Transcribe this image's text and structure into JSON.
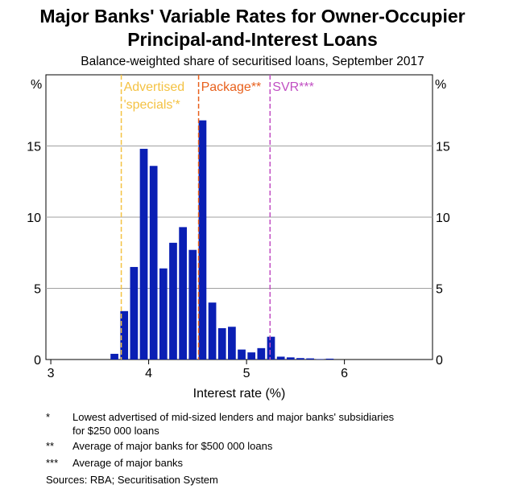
{
  "title_line1": "Major Banks' Variable Rates for Owner-Occupier",
  "title_line2": "Principal-and-Interest Loans",
  "subtitle": "Balance-weighted share of securitised loans, September 2017",
  "chart_data": {
    "type": "bar",
    "title": "Major Banks' Variable Rates for Owner-Occupier Principal-and-Interest Loans",
    "subtitle": "Balance-weighted share of securitised loans, September 2017",
    "xlabel": "Interest rate (%)",
    "ylabel_left": "%",
    "ylabel_right": "%",
    "xlim": [
      2.95,
      6.9
    ],
    "ylim": [
      0,
      20
    ],
    "xticks": [
      3,
      4,
      5,
      6
    ],
    "yticks": [
      0,
      5,
      10,
      15
    ],
    "bin_width": 0.1,
    "bins_start": [
      3.6,
      3.7,
      3.8,
      3.9,
      4.0,
      4.1,
      4.2,
      4.3,
      4.4,
      4.5,
      4.6,
      4.7,
      4.8,
      4.9,
      5.0,
      5.1,
      5.2,
      5.3,
      5.4,
      5.5,
      5.6,
      5.7,
      5.8
    ],
    "values": [
      0.4,
      3.4,
      6.5,
      14.8,
      13.6,
      6.4,
      8.2,
      9.3,
      7.7,
      16.8,
      4.0,
      2.2,
      2.3,
      0.7,
      0.5,
      0.8,
      1.6,
      0.2,
      0.15,
      0.1,
      0.08,
      0.03,
      0.06
    ],
    "bar_color": "#0a1fb4",
    "grid": true,
    "reference_lines": [
      {
        "x": 3.72,
        "label": "Advertised 'specials'*",
        "label_line1": "Advertised",
        "label_line2": "'specials'*",
        "color": "#f4c243"
      },
      {
        "x": 4.51,
        "label": "Package**",
        "color": "#e8601c"
      },
      {
        "x": 5.24,
        "label": "SVR***",
        "color": "#c14fc3"
      }
    ]
  },
  "footnotes": [
    {
      "marker": "*",
      "text1": "Lowest advertised of mid-sized lenders and major banks' subsidiaries",
      "text2": "for $250 000 loans"
    },
    {
      "marker": "**",
      "text1": "Average of major banks for $500 000 loans"
    },
    {
      "marker": "***",
      "text1": "Average of major banks"
    }
  ],
  "sources": "Sources:  RBA; Securitisation System"
}
